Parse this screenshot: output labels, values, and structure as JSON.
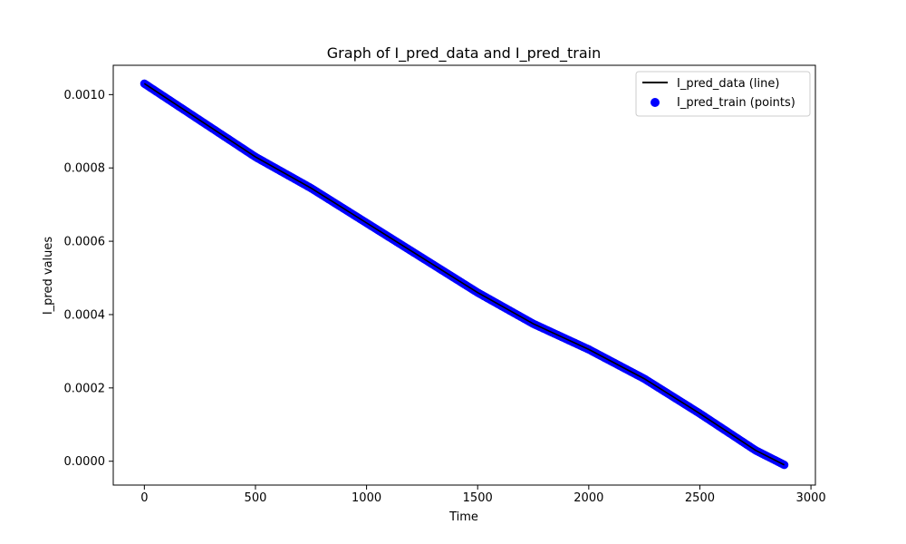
{
  "chart_data": {
    "type": "scatter",
    "title": "Graph of I_pred_data and I_pred_train",
    "xlabel": "Time",
    "ylabel": "I_pred values",
    "xlim": [
      -140,
      3020
    ],
    "ylim": [
      -6.5e-05,
      0.00108
    ],
    "x_ticks": [
      0,
      500,
      1000,
      1500,
      2000,
      2500,
      3000
    ],
    "x_tick_labels": [
      "0",
      "500",
      "1000",
      "1500",
      "2000",
      "2500",
      "3000"
    ],
    "y_ticks": [
      0.0,
      0.0002,
      0.0004,
      0.0006,
      0.0008,
      0.001
    ],
    "y_tick_labels": [
      "0.0000",
      "0.0002",
      "0.0004",
      "0.0006",
      "0.0008",
      "0.0010"
    ],
    "grid": false,
    "legend_position": "top-right",
    "colors": {
      "line": "#000000",
      "points": "#0000ff"
    },
    "series": [
      {
        "name": "I_pred_data (line)",
        "kind": "line",
        "x": [
          0,
          250,
          500,
          750,
          1000,
          1250,
          1500,
          1750,
          2000,
          2250,
          2500,
          2750,
          2880
        ],
        "y": [
          0.00103,
          0.00093,
          0.00083,
          0.000745,
          0.00065,
          0.000555,
          0.00046,
          0.000375,
          0.000305,
          0.000225,
          0.00013,
          3e-05,
          -1e-05
        ]
      },
      {
        "name": "I_pred_train (points)",
        "kind": "scatter",
        "x": [
          0,
          250,
          500,
          750,
          1000,
          1250,
          1500,
          1750,
          2000,
          2250,
          2500,
          2750,
          2880
        ],
        "y": [
          0.00103,
          0.00093,
          0.00083,
          0.000745,
          0.00065,
          0.000555,
          0.00046,
          0.000375,
          0.000305,
          0.000225,
          0.00013,
          3e-05,
          -1e-05
        ]
      }
    ]
  }
}
